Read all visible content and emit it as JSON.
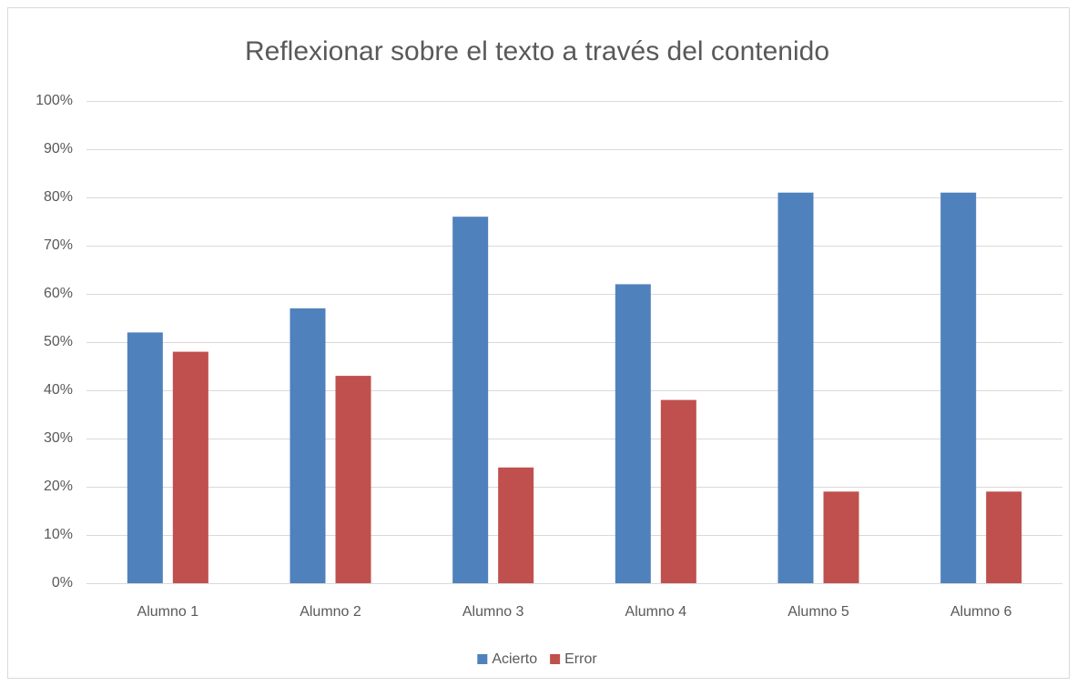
{
  "chart_data": {
    "type": "bar",
    "title": "Reflexionar sobre el texto a través del contenido",
    "categories": [
      "Alumno 1",
      "Alumno 2",
      "Alumno 3",
      "Alumno 4",
      "Alumno 5",
      "Alumno 6"
    ],
    "series": [
      {
        "name": "Acierto",
        "color": "#4f81bd",
        "values": [
          52,
          57,
          76,
          62,
          81,
          81
        ]
      },
      {
        "name": "Error",
        "color": "#c0504d",
        "values": [
          48,
          43,
          24,
          38,
          19,
          19
        ]
      }
    ],
    "ylim": [
      0,
      100
    ],
    "yticks": [
      {
        "value": 0,
        "label": "0%"
      },
      {
        "value": 10,
        "label": "10%"
      },
      {
        "value": 20,
        "label": "20%"
      },
      {
        "value": 30,
        "label": "30%"
      },
      {
        "value": 40,
        "label": "40%"
      },
      {
        "value": 50,
        "label": "50%"
      },
      {
        "value": 60,
        "label": "60%"
      },
      {
        "value": 70,
        "label": "70%"
      },
      {
        "value": 80,
        "label": "80%"
      },
      {
        "value": 90,
        "label": "90%"
      },
      {
        "value": 100,
        "label": "100%"
      }
    ],
    "grid": true,
    "legend": "bottom"
  }
}
